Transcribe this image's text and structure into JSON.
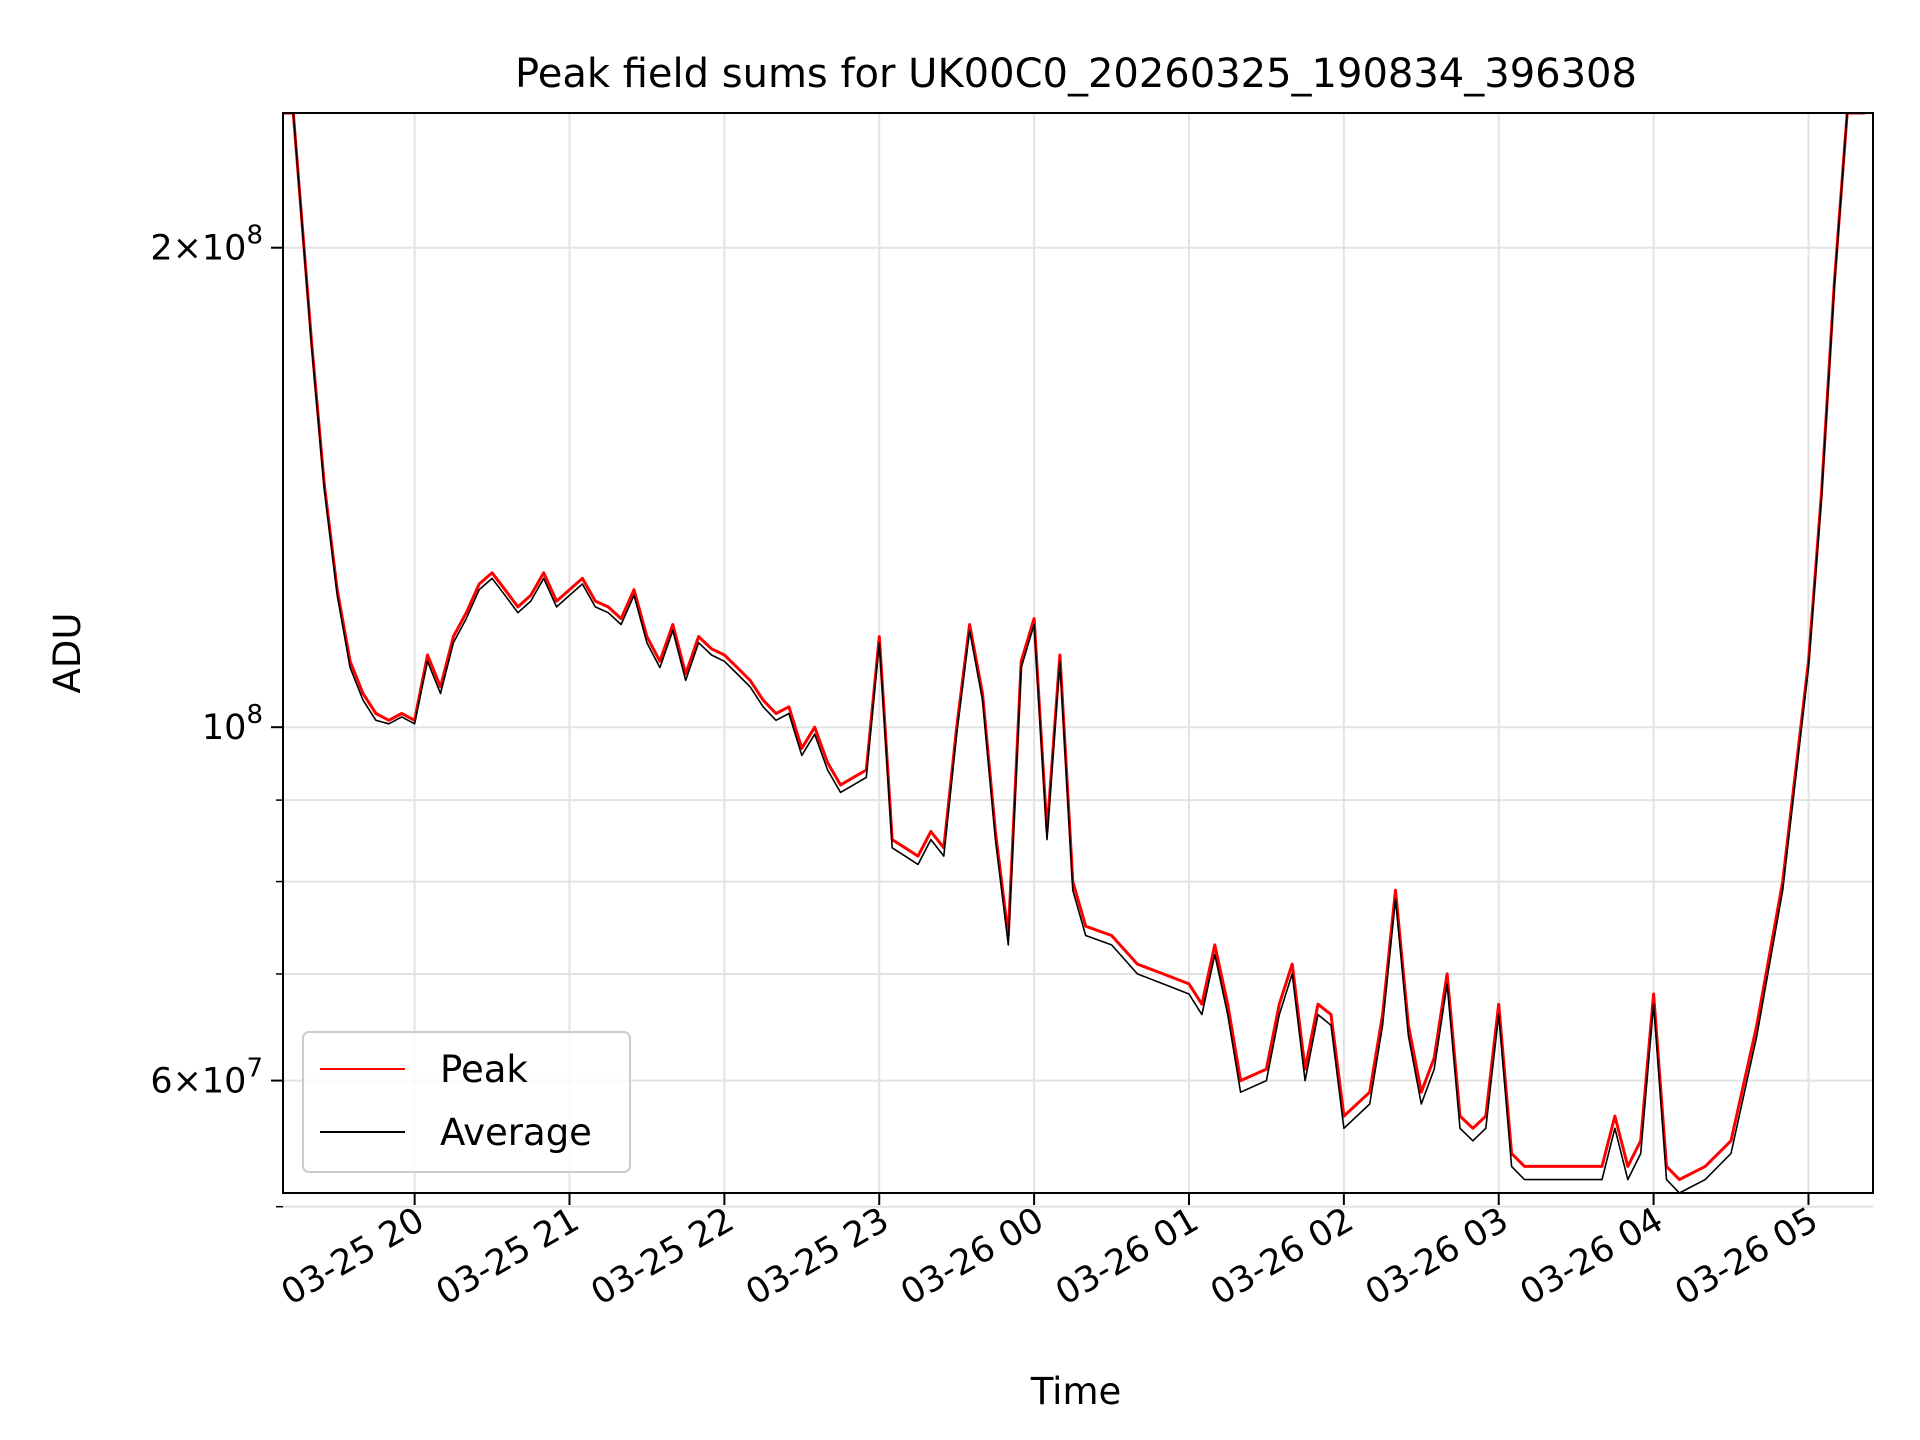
{
  "chart_data": {
    "type": "line",
    "title": "Peak field sums for UK00C0_20260325_190834_396308",
    "xlabel": "Time",
    "ylabel": "ADU",
    "yscale": "log",
    "xlim": [
      "2026-03-25 19:09",
      "2026-03-26 05:25"
    ],
    "ylim": [
      51000000,
      243000000
    ],
    "grid": true,
    "legend_position": "lower-left",
    "x_ticks": [
      {
        "value": "2026-03-25 20:00",
        "label": "03-25 20"
      },
      {
        "value": "2026-03-25 21:00",
        "label": "03-25 21"
      },
      {
        "value": "2026-03-25 22:00",
        "label": "03-25 22"
      },
      {
        "value": "2026-03-25 23:00",
        "label": "03-25 23"
      },
      {
        "value": "2026-03-26 00:00",
        "label": "03-26 00"
      },
      {
        "value": "2026-03-26 01:00",
        "label": "03-26 01"
      },
      {
        "value": "2026-03-26 02:00",
        "label": "03-26 02"
      },
      {
        "value": "2026-03-26 03:00",
        "label": "03-26 03"
      },
      {
        "value": "2026-03-26 04:00",
        "label": "03-26 04"
      },
      {
        "value": "2026-03-26 05:00",
        "label": "03-26 05"
      }
    ],
    "y_ticks": [
      {
        "value": 60000000,
        "mantissa": "6",
        "exponent": "7"
      },
      {
        "value": 100000000,
        "mantissa": "",
        "exponent": "8"
      },
      {
        "value": 200000000,
        "mantissa": "2",
        "exponent": "8"
      }
    ],
    "y_minor_ticks": [
      50000000,
      70000000,
      80000000,
      90000000
    ],
    "series": [
      {
        "name": "Peak",
        "color": "#ff0000",
        "x": [
          "2026-03-25 19:09",
          "2026-03-25 19:13",
          "2026-03-25 19:20",
          "2026-03-25 19:25",
          "2026-03-25 19:30",
          "2026-03-25 19:35",
          "2026-03-25 19:40",
          "2026-03-25 19:45",
          "2026-03-25 19:50",
          "2026-03-25 19:55",
          "2026-03-25 20:00",
          "2026-03-25 20:05",
          "2026-03-25 20:10",
          "2026-03-25 20:15",
          "2026-03-25 20:20",
          "2026-03-25 20:25",
          "2026-03-25 20:30",
          "2026-03-25 20:35",
          "2026-03-25 20:40",
          "2026-03-25 20:45",
          "2026-03-25 20:50",
          "2026-03-25 20:55",
          "2026-03-25 21:00",
          "2026-03-25 21:05",
          "2026-03-25 21:10",
          "2026-03-25 21:15",
          "2026-03-25 21:20",
          "2026-03-25 21:25",
          "2026-03-25 21:30",
          "2026-03-25 21:35",
          "2026-03-25 21:40",
          "2026-03-25 21:45",
          "2026-03-25 21:50",
          "2026-03-25 21:55",
          "2026-03-25 22:00",
          "2026-03-25 22:05",
          "2026-03-25 22:10",
          "2026-03-25 22:15",
          "2026-03-25 22:20",
          "2026-03-25 22:25",
          "2026-03-25 22:30",
          "2026-03-25 22:35",
          "2026-03-25 22:40",
          "2026-03-25 22:45",
          "2026-03-25 22:50",
          "2026-03-25 22:55",
          "2026-03-25 23:00",
          "2026-03-25 23:05",
          "2026-03-25 23:10",
          "2026-03-25 23:15",
          "2026-03-25 23:20",
          "2026-03-25 23:25",
          "2026-03-25 23:30",
          "2026-03-25 23:35",
          "2026-03-25 23:40",
          "2026-03-25 23:45",
          "2026-03-25 23:50",
          "2026-03-25 23:55",
          "2026-03-26 00:00",
          "2026-03-26 00:05",
          "2026-03-26 00:10",
          "2026-03-26 00:15",
          "2026-03-26 00:20",
          "2026-03-26 00:30",
          "2026-03-26 00:40",
          "2026-03-26 00:50",
          "2026-03-26 01:00",
          "2026-03-26 01:05",
          "2026-03-26 01:10",
          "2026-03-26 01:15",
          "2026-03-26 01:20",
          "2026-03-26 01:30",
          "2026-03-26 01:35",
          "2026-03-26 01:40",
          "2026-03-26 01:45",
          "2026-03-26 01:50",
          "2026-03-26 01:55",
          "2026-03-26 02:00",
          "2026-03-26 02:10",
          "2026-03-26 02:15",
          "2026-03-26 02:20",
          "2026-03-26 02:25",
          "2026-03-26 02:30",
          "2026-03-26 02:35",
          "2026-03-26 02:40",
          "2026-03-26 02:45",
          "2026-03-26 02:50",
          "2026-03-26 02:55",
          "2026-03-26 03:00",
          "2026-03-26 03:05",
          "2026-03-26 03:10",
          "2026-03-26 03:15",
          "2026-03-26 03:20",
          "2026-03-26 03:30",
          "2026-03-26 03:40",
          "2026-03-26 03:45",
          "2026-03-26 03:50",
          "2026-03-26 03:55",
          "2026-03-26 04:00",
          "2026-03-26 04:05",
          "2026-03-26 04:10",
          "2026-03-26 04:20",
          "2026-03-26 04:30",
          "2026-03-26 04:40",
          "2026-03-26 04:50",
          "2026-03-26 05:00",
          "2026-03-26 05:05",
          "2026-03-26 05:10",
          "2026-03-26 05:15",
          "2026-03-26 05:22"
        ],
        "values": [
          243000000,
          243000000,
          175000000,
          142000000,
          122000000,
          110000000,
          105000000,
          102000000,
          101000000,
          102000000,
          101000000,
          111000000,
          106000000,
          114000000,
          118000000,
          123000000,
          125000000,
          122000000,
          119000000,
          121000000,
          125000000,
          120000000,
          122000000,
          124000000,
          120000000,
          119000000,
          117000000,
          122000000,
          114000000,
          110000000,
          116000000,
          108000000,
          114000000,
          112000000,
          111000000,
          109000000,
          107000000,
          104000000,
          102000000,
          103000000,
          97000000,
          100000000,
          95000000,
          92000000,
          93000000,
          94000000,
          114000000,
          85000000,
          84000000,
          83000000,
          86000000,
          84000000,
          100000000,
          116000000,
          105000000,
          86000000,
          74000000,
          110000000,
          117000000,
          86000000,
          111000000,
          80000000,
          75000000,
          74000000,
          71000000,
          70000000,
          69000000,
          67000000,
          73000000,
          67000000,
          60000000,
          61000000,
          67000000,
          71000000,
          61000000,
          67000000,
          66000000,
          57000000,
          59000000,
          66000000,
          79000000,
          65000000,
          59000000,
          62000000,
          70000000,
          57000000,
          56000000,
          57000000,
          67000000,
          54000000,
          53000000,
          53000000,
          53000000,
          53000000,
          53000000,
          57000000,
          53000000,
          55000000,
          68000000,
          53000000,
          52000000,
          53000000,
          55000000,
          65000000,
          80000000,
          110000000,
          140000000,
          190000000,
          243000000,
          243000000
        ]
      },
      {
        "name": "Average",
        "color": "#000000",
        "x": [
          "2026-03-25 19:09",
          "2026-03-25 19:13",
          "2026-03-25 19:20",
          "2026-03-25 19:25",
          "2026-03-25 19:30",
          "2026-03-25 19:35",
          "2026-03-25 19:40",
          "2026-03-25 19:45",
          "2026-03-25 19:50",
          "2026-03-25 19:55",
          "2026-03-25 20:00",
          "2026-03-25 20:05",
          "2026-03-25 20:10",
          "2026-03-25 20:15",
          "2026-03-25 20:20",
          "2026-03-25 20:25",
          "2026-03-25 20:30",
          "2026-03-25 20:35",
          "2026-03-25 20:40",
          "2026-03-25 20:45",
          "2026-03-25 20:50",
          "2026-03-25 20:55",
          "2026-03-25 21:00",
          "2026-03-25 21:05",
          "2026-03-25 21:10",
          "2026-03-25 21:15",
          "2026-03-25 21:20",
          "2026-03-25 21:25",
          "2026-03-25 21:30",
          "2026-03-25 21:35",
          "2026-03-25 21:40",
          "2026-03-25 21:45",
          "2026-03-25 21:50",
          "2026-03-25 21:55",
          "2026-03-25 22:00",
          "2026-03-25 22:05",
          "2026-03-25 22:10",
          "2026-03-25 22:15",
          "2026-03-25 22:20",
          "2026-03-25 22:25",
          "2026-03-25 22:30",
          "2026-03-25 22:35",
          "2026-03-25 22:40",
          "2026-03-25 22:45",
          "2026-03-25 22:50",
          "2026-03-25 22:55",
          "2026-03-25 23:00",
          "2026-03-25 23:05",
          "2026-03-25 23:10",
          "2026-03-25 23:15",
          "2026-03-25 23:20",
          "2026-03-25 23:25",
          "2026-03-25 23:30",
          "2026-03-25 23:35",
          "2026-03-25 23:40",
          "2026-03-25 23:45",
          "2026-03-25 23:50",
          "2026-03-25 23:55",
          "2026-03-26 00:00",
          "2026-03-26 00:05",
          "2026-03-26 00:10",
          "2026-03-26 00:15",
          "2026-03-26 00:20",
          "2026-03-26 00:30",
          "2026-03-26 00:40",
          "2026-03-26 00:50",
          "2026-03-26 01:00",
          "2026-03-26 01:05",
          "2026-03-26 01:10",
          "2026-03-26 01:15",
          "2026-03-26 01:20",
          "2026-03-26 01:30",
          "2026-03-26 01:35",
          "2026-03-26 01:40",
          "2026-03-26 01:45",
          "2026-03-26 01:50",
          "2026-03-26 01:55",
          "2026-03-26 02:00",
          "2026-03-26 02:10",
          "2026-03-26 02:15",
          "2026-03-26 02:20",
          "2026-03-26 02:25",
          "2026-03-26 02:30",
          "2026-03-26 02:35",
          "2026-03-26 02:40",
          "2026-03-26 02:45",
          "2026-03-26 02:50",
          "2026-03-26 02:55",
          "2026-03-26 03:00",
          "2026-03-26 03:05",
          "2026-03-26 03:10",
          "2026-03-26 03:15",
          "2026-03-26 03:20",
          "2026-03-26 03:30",
          "2026-03-26 03:40",
          "2026-03-26 03:45",
          "2026-03-26 03:50",
          "2026-03-26 03:55",
          "2026-03-26 04:00",
          "2026-03-26 04:05",
          "2026-03-26 04:10",
          "2026-03-26 04:20",
          "2026-03-26 04:30",
          "2026-03-26 04:40",
          "2026-03-26 04:50",
          "2026-03-26 05:00",
          "2026-03-26 05:05",
          "2026-03-26 05:10",
          "2026-03-26 05:15",
          "2026-03-26 05:22"
        ],
        "values": [
          243000000,
          243000000,
          174000000,
          141000000,
          121000000,
          109000000,
          104000000,
          101000000,
          100500000,
          101500000,
          100500000,
          110000000,
          105000000,
          113000000,
          117000000,
          122000000,
          124000000,
          121000000,
          118000000,
          120000000,
          124000000,
          119000000,
          121000000,
          123000000,
          119000000,
          118000000,
          116000000,
          121000000,
          113000000,
          109000000,
          115000000,
          107000000,
          113000000,
          111000000,
          110000000,
          108000000,
          106000000,
          103000000,
          101000000,
          102000000,
          96000000,
          99000000,
          94000000,
          91000000,
          92000000,
          93000000,
          113000000,
          84000000,
          83000000,
          82000000,
          85000000,
          83000000,
          99000000,
          115000000,
          104000000,
          85000000,
          73000000,
          109000000,
          116000000,
          85000000,
          110000000,
          79000000,
          74000000,
          73000000,
          70000000,
          69000000,
          68000000,
          66000000,
          72000000,
          66000000,
          59000000,
          60000000,
          66000000,
          70000000,
          60000000,
          66000000,
          65000000,
          56000000,
          58000000,
          65000000,
          78000000,
          64000000,
          58000000,
          61000000,
          69000000,
          56000000,
          55000000,
          56000000,
          66000000,
          53000000,
          52000000,
          52000000,
          52000000,
          52000000,
          52000000,
          56000000,
          52000000,
          54000000,
          67000000,
          52000000,
          51000000,
          52000000,
          54000000,
          64000000,
          79000000,
          109000000,
          139000000,
          189000000,
          243000000,
          243000000
        ]
      }
    ]
  }
}
